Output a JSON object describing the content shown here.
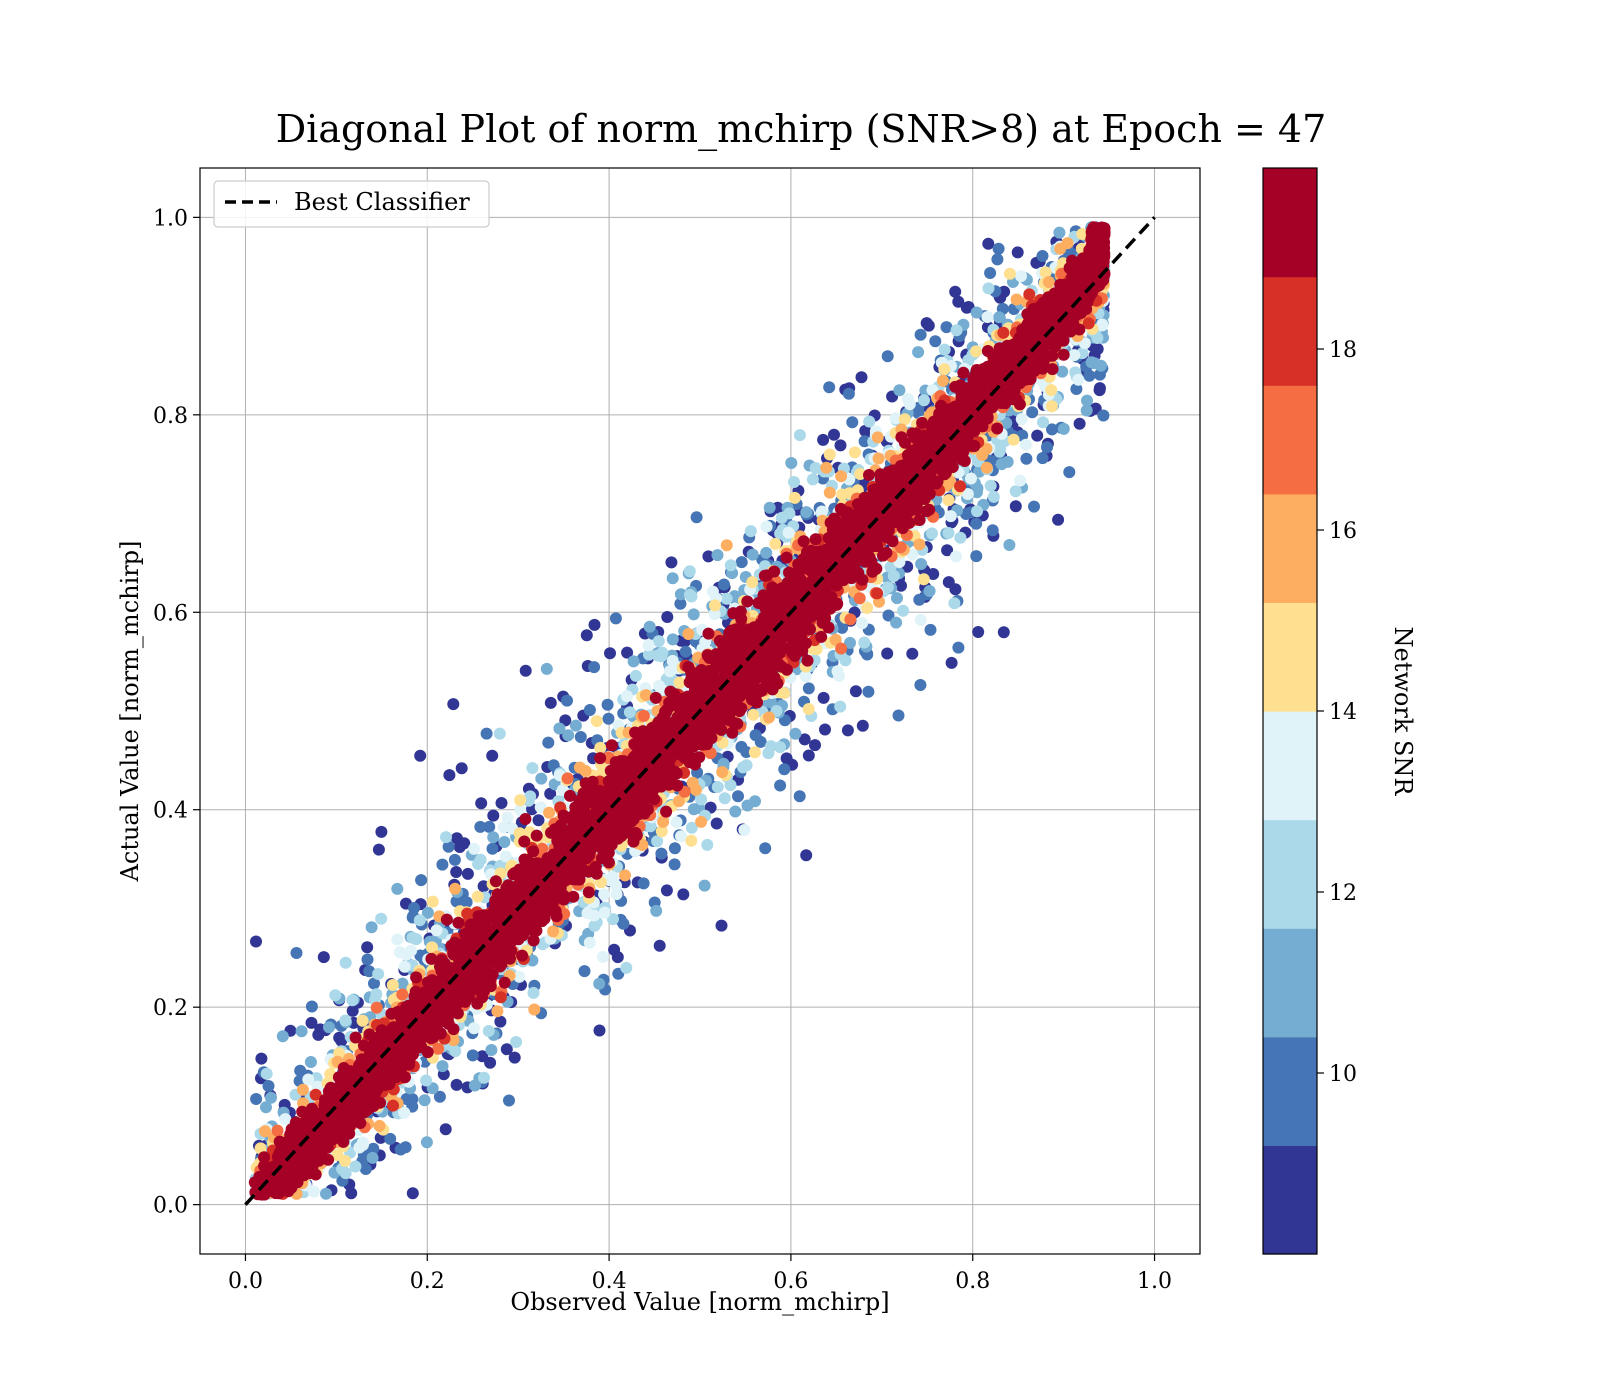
{
  "chart_data": {
    "type": "scatter",
    "title": "Diagonal Plot of norm_mchirp (SNR>8) at Epoch = 47",
    "xlabel": "Observed Value [norm_mchirp]",
    "ylabel": "Actual Value [norm_mchirp]",
    "xlim": [
      -0.05,
      1.05
    ],
    "ylim": [
      -0.05,
      1.05
    ],
    "xticks": [
      "0.0",
      "0.2",
      "0.4",
      "0.6",
      "0.8",
      "1.0"
    ],
    "yticks": [
      "0.0",
      "0.2",
      "0.4",
      "0.6",
      "0.8",
      "1.0"
    ],
    "grid": true,
    "legend": {
      "position": "top-left",
      "entries": [
        "Best Classifier"
      ]
    },
    "reference_line": {
      "name": "Best Classifier",
      "x": [
        0.0,
        1.0
      ],
      "y": [
        0.0,
        1.0
      ],
      "style": "dashed",
      "color": "#000000"
    },
    "colorbar": {
      "label": "Network SNR",
      "range": [
        8,
        20
      ],
      "ticks": [
        "10",
        "12",
        "14",
        "16",
        "18"
      ],
      "tick_values": [
        10,
        12,
        14,
        16,
        18
      ],
      "colors": [
        "#313695",
        "#4575b4",
        "#74add1",
        "#abd9e9",
        "#e0f3f8",
        "#fee090",
        "#fdae61",
        "#f46d43",
        "#d73027",
        "#a50026"
      ]
    },
    "points": {
      "description_of_distribution": "dense cloud along the diagonal; high SNR (red) concentrated near y = x, low SNR (blue) scattered farther away",
      "count_rendered": 9000,
      "x_range": [
        0.0,
        0.95
      ],
      "y_range": [
        0.0,
        1.0
      ]
    }
  }
}
